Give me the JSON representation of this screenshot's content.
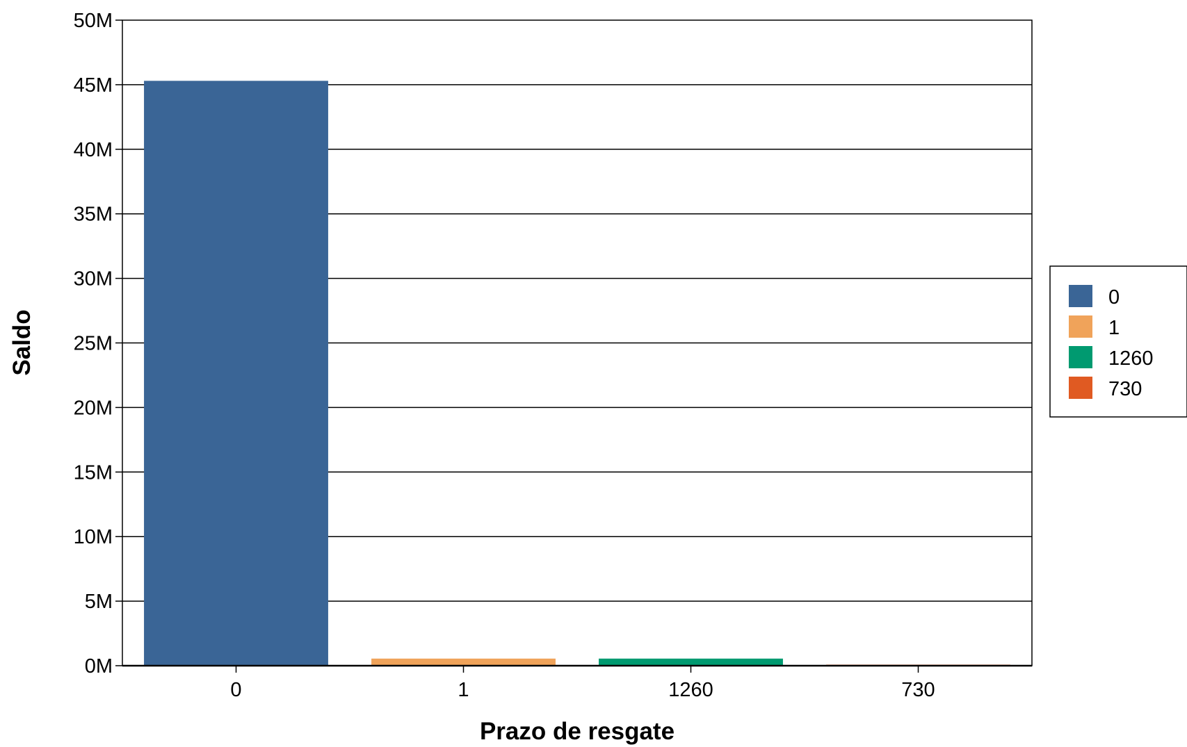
{
  "chart_data": {
    "type": "bar",
    "title": "",
    "xlabel": "Prazo de resgate",
    "ylabel": "Saldo",
    "categories": [
      "0",
      "1",
      "1260",
      "730"
    ],
    "values": [
      45300000,
      550000,
      550000,
      80000
    ],
    "colors": [
      "#3a6596",
      "#f0a35a",
      "#009a70",
      "#e05a22"
    ],
    "ylim": [
      0,
      50000000
    ],
    "yticks": [
      0,
      5000000,
      10000000,
      15000000,
      20000000,
      25000000,
      30000000,
      35000000,
      40000000,
      45000000,
      50000000
    ],
    "ytick_labels": [
      "0M",
      "5M",
      "10M",
      "15M",
      "20M",
      "25M",
      "30M",
      "35M",
      "40M",
      "45M",
      "50M"
    ],
    "grid": true,
    "legend": {
      "placement": "right",
      "entries": [
        "0",
        "1",
        "1260",
        "730"
      ]
    }
  }
}
